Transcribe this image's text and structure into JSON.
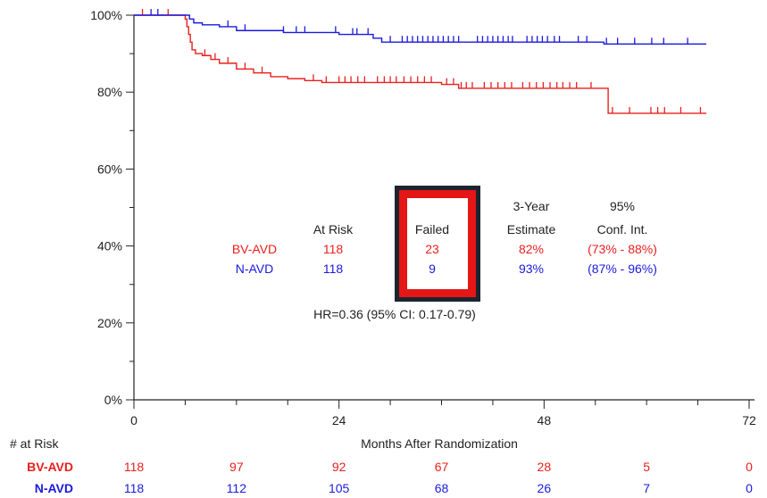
{
  "chart_data": {
    "type": "line",
    "subtype": "kaplan-meier survival curve",
    "xlabel": "Months After Randomization",
    "ylabel": "",
    "xlim": [
      0,
      72
    ],
    "ylim": [
      0,
      100
    ],
    "x_ticks": [
      "0",
      "24",
      "48",
      "72"
    ],
    "y_ticks": [
      "0%",
      "20%",
      "40%",
      "60%",
      "80%",
      "100%"
    ],
    "grid": false,
    "series": [
      {
        "name": "BV-AVD",
        "color": "#e8201f",
        "steps": [
          [
            0,
            100
          ],
          [
            6,
            99
          ],
          [
            6.2,
            97
          ],
          [
            6.4,
            95
          ],
          [
            6.6,
            93
          ],
          [
            6.8,
            91
          ],
          [
            7.2,
            90
          ],
          [
            8,
            89.5
          ],
          [
            9,
            88.5
          ],
          [
            10,
            87.5
          ],
          [
            12,
            86
          ],
          [
            14,
            85
          ],
          [
            16,
            84
          ],
          [
            18,
            83.5
          ],
          [
            20,
            83
          ],
          [
            22,
            82.5
          ],
          [
            36,
            82
          ],
          [
            38,
            81
          ],
          [
            55,
            81
          ],
          [
            55.5,
            74.5
          ],
          [
            67,
            74.5
          ]
        ],
        "censor_x": [
          1,
          4,
          8.3,
          9.5,
          11,
          13,
          15,
          21,
          22.5,
          24,
          24.7,
          25.4,
          26.2,
          27,
          28.5,
          29.3,
          30,
          30.7,
          31.6,
          32.4,
          33.2,
          34,
          34.8,
          36.6,
          37.4,
          38.3,
          38.9,
          39.6,
          41,
          41.8,
          42.6,
          43.4,
          44.2,
          45.5,
          46.3,
          47.1,
          47.9,
          48.7,
          49.5,
          50.2,
          51,
          51.8,
          53.5,
          56,
          58,
          60.5,
          61.3,
          62.1,
          64,
          66.3
        ]
      },
      {
        "name": "N-AVD",
        "color": "#1a1ae0",
        "steps": [
          [
            0,
            100
          ],
          [
            6.5,
            99
          ],
          [
            7,
            98
          ],
          [
            8,
            97.5
          ],
          [
            10,
            97
          ],
          [
            12,
            96
          ],
          [
            17,
            96
          ],
          [
            17.5,
            95.5
          ],
          [
            24,
            95
          ],
          [
            28,
            94
          ],
          [
            29,
            93
          ],
          [
            55,
            92.5
          ],
          [
            67,
            92.5
          ]
        ],
        "censor_x": [
          2,
          2.8,
          11,
          13,
          17.5,
          19,
          20,
          23.6,
          25.6,
          26.1,
          27.4,
          30,
          31.4,
          32,
          32.6,
          33.2,
          33.8,
          34.4,
          35,
          35.6,
          36.2,
          36.8,
          37.4,
          38,
          40.2,
          40.8,
          41.4,
          42,
          42.6,
          43.2,
          43.8,
          44.3,
          46,
          46.6,
          47.2,
          47.8,
          48.4,
          49.2,
          49.8,
          52,
          53,
          55.3,
          56.6,
          58.6,
          60.6,
          62,
          64.8
        ]
      }
    ],
    "annotation": {
      "headers": {
        "at_risk": "At Risk",
        "failed": "Failed",
        "estimate_line1": "3-Year",
        "estimate_line2": "Estimate",
        "ci_line1": "95%",
        "ci_line2": "Conf. Int."
      },
      "rows": [
        {
          "name": "BV-AVD",
          "at_risk": "118",
          "failed": "23",
          "estimate": "82%",
          "ci": "(73% - 88%)",
          "color": "#e8201f"
        },
        {
          "name": "N-AVD",
          "at_risk": "118",
          "failed": "9",
          "estimate": "93%",
          "ci": "(87% - 96%)",
          "color": "#1a1ae0"
        }
      ],
      "hr_text": "HR=0.36 (95% CI: 0.17-0.79)",
      "highlight_box": {
        "outer_color": "#1c2430",
        "inner_color": "#e41616"
      }
    },
    "risk_table": {
      "title": "# at Risk",
      "times": [
        0,
        12,
        24,
        36,
        48,
        60,
        72
      ],
      "rows": [
        {
          "name": "BV-AVD",
          "color": "#e8201f",
          "counts": [
            "118",
            "97",
            "92",
            "67",
            "28",
            "5",
            "0"
          ]
        },
        {
          "name": "N-AVD",
          "color": "#1a1ae0",
          "counts": [
            "118",
            "112",
            "105",
            "68",
            "26",
            "7",
            "0"
          ]
        }
      ]
    }
  }
}
